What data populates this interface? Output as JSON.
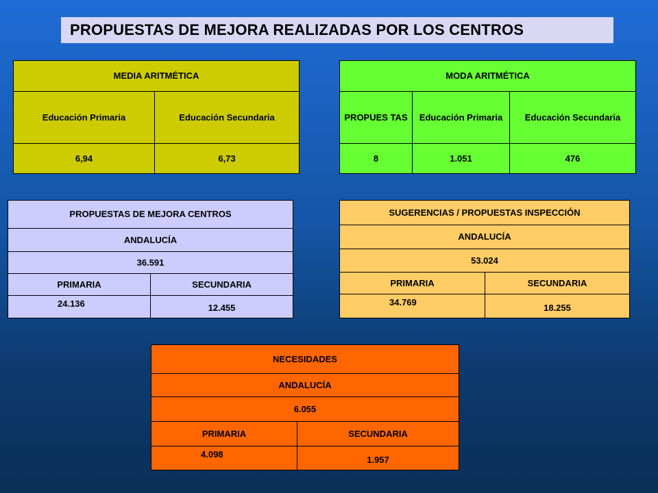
{
  "title": "PROPUESTAS DE MEJORA REALIZADAS POR LOS CENTROS",
  "media": {
    "header": "MEDIA ARITMÉTICA",
    "col1": "Educación Primaria",
    "col2": "Educación Secundaria",
    "val1": "6,94",
    "val2": "6,73"
  },
  "moda": {
    "header": "MODA ARITMÉTICA",
    "col1": "PROPUES TAS",
    "col2": "Educación Primaria",
    "col3": "Educación Secundaria",
    "val1": "8",
    "val2": "1.051",
    "val3": "476"
  },
  "centros": {
    "header": "PROPUESTAS DE MEJORA CENTROS",
    "region": "ANDALUCÍA",
    "total": "36.591",
    "col1": "PRIMARIA",
    "col2": "SECUNDARIA",
    "val1": "24.136",
    "val2": "12.455"
  },
  "inspeccion": {
    "header": "SUGERENCIAS / PROPUESTAS INSPECCIÓN",
    "region": "ANDALUCÍA",
    "total": "53.024",
    "col1": "PRIMARIA",
    "col2": "SECUNDARIA",
    "val1": "34.769",
    "val2": "18.255"
  },
  "necesidades": {
    "header": "NECESIDADES",
    "region": "ANDALUCÍA",
    "total": "6.055",
    "col1": "PRIMARIA",
    "col2": "SECUNDARIA",
    "val1": "4.098",
    "val2": "1.957"
  }
}
